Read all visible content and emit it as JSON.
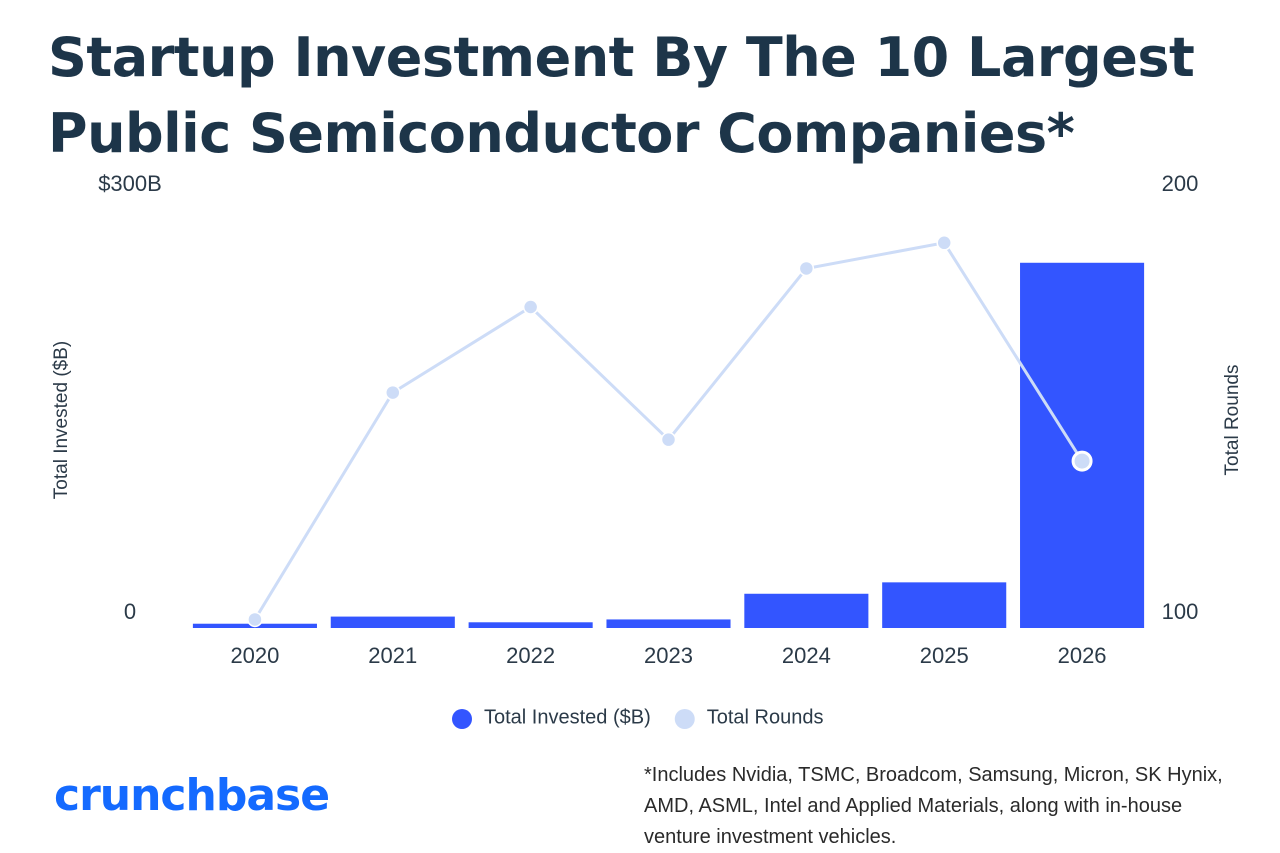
{
  "chart_data": {
    "type": "combo",
    "title": "Startup Investment By The 10 Largest Public Semiconductor Companies*",
    "categories": [
      "2020",
      "2021",
      "2022",
      "2023",
      "2024",
      "2025",
      "2026"
    ],
    "series": [
      {
        "name": "Total Invested ($B)",
        "type": "bar",
        "color": "#3355ff",
        "values": [
          3,
          8,
          4,
          6,
          24,
          32,
          256
        ]
      },
      {
        "name": "Total Rounds",
        "type": "line",
        "axis": "y2",
        "color": "#cddcf7",
        "values": [
          102,
          155,
          175,
          144,
          184,
          190,
          139
        ]
      }
    ],
    "ylabel": "Total Invested ($B)",
    "y2label": "Total Rounds",
    "ylim": [
      0,
      300
    ],
    "yticks": [
      0,
      {
        "value": 300,
        "label": "$300B"
      }
    ],
    "y2lim": [
      100,
      200
    ],
    "y2ticks": [
      100,
      200
    ],
    "grid": false,
    "legend": "bottom",
    "footnote": "*Includes Nvidia, TSMC, Broadcom, Samsung, Micron, SK Hynix, AMD, ASML, Intel and Applied Materials, along with in-house venture investment vehicles."
  },
  "brand": "crunchbase"
}
